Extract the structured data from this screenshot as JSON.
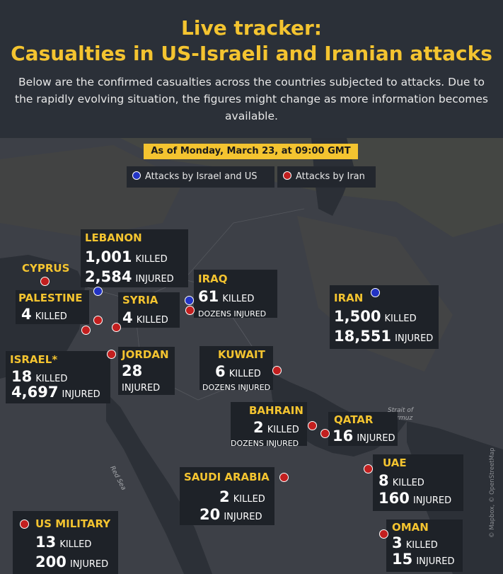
{
  "title_line1": "Live tracker:",
  "title_line2": "Casualties in US-Israeli and Iranian attacks",
  "subtitle": "Below are the confirmed casualties across the countries subjected to attacks. Due to the rapidly evolving situation, the figures might change as more information becomes available.",
  "date_banner": "As of Monday, March 23, at 09:00 GMT",
  "legend": {
    "blue_label": "Attacks by Israel and US",
    "red_label": "Attacks by Iran",
    "blue_color": "#2233c4",
    "red_color": "#c21f1f"
  },
  "map_labels": {
    "strait": "Strait of Hormuz",
    "red_sea": "Red Sea"
  },
  "credit": "© Mapbox, © OpenStreetMap",
  "countries": {
    "cyprus": {
      "name": "CYPRUS"
    },
    "lebanon": {
      "name": "LEBANON",
      "killed": "1,001",
      "killed_label": "KILLED",
      "injured": "2,584",
      "injured_label": "INJURED"
    },
    "palestine": {
      "name": "PALESTINE",
      "killed": "4",
      "killed_label": "KILLED"
    },
    "syria": {
      "name": "SYRIA",
      "killed": "4",
      "killed_label": "KILLED"
    },
    "israel": {
      "name": "ISRAEL*",
      "killed": "18",
      "killed_label": "KILLED",
      "injured": "4,697",
      "injured_label": "INJURED"
    },
    "jordan": {
      "name": "JORDAN",
      "injured": "28",
      "injured_label": "INJURED"
    },
    "iraq": {
      "name": "IRAQ",
      "killed": "61",
      "killed_label": "KILLED",
      "injured_label": "DOZENS INJURED"
    },
    "iran": {
      "name": "IRAN",
      "killed": "1,500",
      "killed_label": "KILLED",
      "injured": "18,551",
      "injured_label": "INJURED"
    },
    "kuwait": {
      "name": "KUWAIT",
      "killed": "6",
      "killed_label": "KILLED",
      "injured_label": "DOZENS INJURED"
    },
    "bahrain": {
      "name": "BAHRAIN",
      "killed": "2",
      "killed_label": "KILLED",
      "injured_label": "DOZENS INJURED"
    },
    "qatar": {
      "name": "QATAR",
      "injured": "16",
      "injured_label": "INJURED"
    },
    "saudi": {
      "name": "SAUDI ARABIA",
      "killed": "2",
      "killed_label": "KILLED",
      "injured": "20",
      "injured_label": "INJURED"
    },
    "uae": {
      "name": "UAE",
      "killed": "8",
      "killed_label": "KILLED",
      "injured": "160",
      "injured_label": "INJURED"
    },
    "oman": {
      "name": "OMAN",
      "killed": "3",
      "killed_label": "KILLED",
      "injured": "15",
      "injured_label": "INJURED"
    },
    "us_military": {
      "name": "US MILITARY",
      "killed": "13",
      "killed_label": "KILLED",
      "injured": "200",
      "injured_label": "INJURED"
    }
  }
}
